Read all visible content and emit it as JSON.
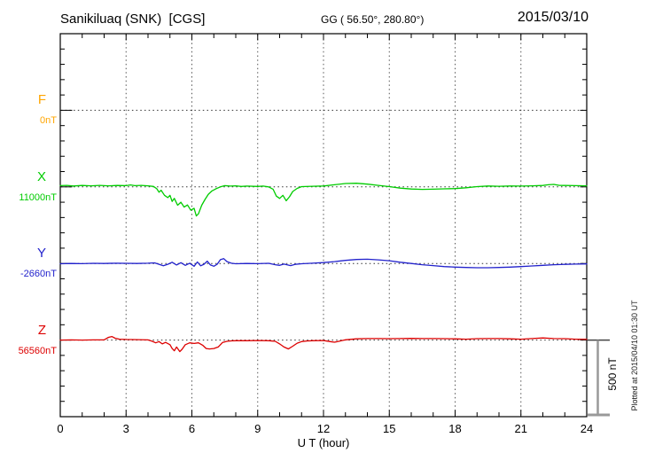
{
  "header": {
    "title": "Sanikiluaq (SNK)  [CGS]",
    "coordinates": "GG ( 56.50°, 280.80°)",
    "date": "2015/03/10"
  },
  "plot": {
    "xlabel": "U T (hour)",
    "x_tick_labels": [
      "0",
      "3",
      "6",
      "9",
      "12",
      "15",
      "18",
      "21",
      "24"
    ],
    "scale_bar_label": "500 nT",
    "plotted_note": "Plotted at 2015/04/10 01:30 UT"
  },
  "channels": [
    {
      "id": "F",
      "label": "F",
      "value": "0nT",
      "color": "#FFA500"
    },
    {
      "id": "X",
      "label": "X",
      "value": "11000nT",
      "color": "#00CC00"
    },
    {
      "id": "Y",
      "label": "Y",
      "value": "-2660nT",
      "color": "#2222CC"
    },
    {
      "id": "Z",
      "label": "Z",
      "value": "56560nT",
      "color": "#DD0000"
    }
  ],
  "chart_data": {
    "type": "line",
    "title": "Sanikiluaq (SNK) [CGS] magnetogram 2015/03/10",
    "xlabel": "U T (hour)",
    "x_range": [
      0,
      24
    ],
    "x_major_tick_step_hours": 3,
    "x_minor_tick_step_hours": 1,
    "y_minor_division_nT": 100,
    "y_baseline_spacing_nT": 500,
    "scale_bar_nT": 500,
    "grid": "dotted vertical lines every 3 hours, dotted horizontal line at each channel baseline",
    "baseline_values": {
      "F": "0nT",
      "X": "11000nT",
      "Y": "-2660nT",
      "Z": "56560nT"
    },
    "series": [
      {
        "name": "F",
        "points_hour_deviation_nT": []
      },
      {
        "name": "X",
        "points_hour_deviation_nT": [
          [
            0,
            8
          ],
          [
            0.3,
            10
          ],
          [
            0.6,
            6
          ],
          [
            1,
            9
          ],
          [
            1.4,
            7
          ],
          [
            1.8,
            10
          ],
          [
            2.2,
            7
          ],
          [
            2.6,
            9
          ],
          [
            3,
            8
          ],
          [
            3.2,
            13
          ],
          [
            3.4,
            8
          ],
          [
            3.7,
            10
          ],
          [
            4,
            7
          ],
          [
            4.25,
            3
          ],
          [
            4.4,
            -12
          ],
          [
            4.5,
            -35
          ],
          [
            4.6,
            -22
          ],
          [
            4.75,
            -55
          ],
          [
            4.9,
            -70
          ],
          [
            5,
            -55
          ],
          [
            5.1,
            -95
          ],
          [
            5.2,
            -75
          ],
          [
            5.35,
            -120
          ],
          [
            5.5,
            -100
          ],
          [
            5.65,
            -132
          ],
          [
            5.8,
            -118
          ],
          [
            5.95,
            -152
          ],
          [
            6.1,
            -140
          ],
          [
            6.2,
            -190
          ],
          [
            6.3,
            -176
          ],
          [
            6.45,
            -120
          ],
          [
            6.6,
            -82
          ],
          [
            6.75,
            -48
          ],
          [
            6.9,
            -28
          ],
          [
            7.1,
            -12
          ],
          [
            7.3,
            0
          ],
          [
            7.5,
            8
          ],
          [
            7.75,
            5
          ],
          [
            8,
            7
          ],
          [
            8.25,
            3
          ],
          [
            8.5,
            5
          ],
          [
            9,
            3
          ],
          [
            9.25,
            5
          ],
          [
            9.5,
            0
          ],
          [
            9.7,
            -15
          ],
          [
            9.85,
            -60
          ],
          [
            10,
            -75
          ],
          [
            10.15,
            -55
          ],
          [
            10.3,
            -90
          ],
          [
            10.45,
            -65
          ],
          [
            10.6,
            -30
          ],
          [
            10.8,
            -10
          ],
          [
            11,
            2
          ],
          [
            11.5,
            4
          ],
          [
            12,
            6
          ],
          [
            12.5,
            14
          ],
          [
            13,
            22
          ],
          [
            13.5,
            24
          ],
          [
            14,
            18
          ],
          [
            14.5,
            10
          ],
          [
            15,
            2
          ],
          [
            15.5,
            -8
          ],
          [
            16,
            -14
          ],
          [
            16.5,
            -16
          ],
          [
            17,
            -15
          ],
          [
            17.5,
            -13
          ],
          [
            18,
            -11
          ],
          [
            18.5,
            -6
          ],
          [
            19,
            2
          ],
          [
            19.5,
            6
          ],
          [
            20,
            4
          ],
          [
            20.5,
            6
          ],
          [
            21,
            5
          ],
          [
            21.5,
            7
          ],
          [
            22,
            9
          ],
          [
            22.25,
            14
          ],
          [
            22.5,
            16
          ],
          [
            22.75,
            10
          ],
          [
            23,
            9
          ],
          [
            23.5,
            8
          ],
          [
            24,
            7
          ]
        ]
      },
      {
        "name": "Y",
        "points_hour_deviation_nT": [
          [
            0,
            -2
          ],
          [
            0.5,
            0
          ],
          [
            1,
            -1
          ],
          [
            1.5,
            1
          ],
          [
            2,
            0
          ],
          [
            2.5,
            2
          ],
          [
            3,
            1
          ],
          [
            3.5,
            0
          ],
          [
            4,
            2
          ],
          [
            4.3,
            4
          ],
          [
            4.5,
            -5
          ],
          [
            4.7,
            -15
          ],
          [
            4.9,
            -5
          ],
          [
            5.1,
            8
          ],
          [
            5.3,
            -10
          ],
          [
            5.5,
            5
          ],
          [
            5.7,
            -12
          ],
          [
            5.9,
            2
          ],
          [
            6.1,
            -18
          ],
          [
            6.25,
            10
          ],
          [
            6.4,
            -15
          ],
          [
            6.55,
            -5
          ],
          [
            6.7,
            15
          ],
          [
            6.85,
            -10
          ],
          [
            7,
            -18
          ],
          [
            7.15,
            -5
          ],
          [
            7.3,
            25
          ],
          [
            7.45,
            32
          ],
          [
            7.6,
            12
          ],
          [
            7.8,
            2
          ],
          [
            8,
            -2
          ],
          [
            8.5,
            0
          ],
          [
            9,
            -1
          ],
          [
            9.5,
            1
          ],
          [
            9.8,
            -8
          ],
          [
            10,
            -12
          ],
          [
            10.2,
            -4
          ],
          [
            10.5,
            -14
          ],
          [
            10.7,
            -6
          ],
          [
            11,
            -2
          ],
          [
            11.5,
            2
          ],
          [
            12,
            6
          ],
          [
            12.5,
            12
          ],
          [
            13,
            20
          ],
          [
            13.5,
            26
          ],
          [
            14,
            28
          ],
          [
            14.5,
            24
          ],
          [
            15,
            18
          ],
          [
            15.5,
            8
          ],
          [
            16,
            0
          ],
          [
            16.5,
            -8
          ],
          [
            17,
            -14
          ],
          [
            17.5,
            -20
          ],
          [
            18,
            -24
          ],
          [
            18.5,
            -26
          ],
          [
            19,
            -28
          ],
          [
            19.5,
            -28
          ],
          [
            20,
            -26
          ],
          [
            20.5,
            -24
          ],
          [
            21,
            -20
          ],
          [
            21.5,
            -16
          ],
          [
            22,
            -12
          ],
          [
            22.5,
            -8
          ],
          [
            23,
            -6
          ],
          [
            23.5,
            -4
          ],
          [
            24,
            -3
          ]
        ]
      },
      {
        "name": "Z",
        "points_hour_deviation_nT": [
          [
            0,
            0
          ],
          [
            0.5,
            1
          ],
          [
            1,
            0
          ],
          [
            1.5,
            1
          ],
          [
            2,
            2
          ],
          [
            2.2,
            18
          ],
          [
            2.35,
            23
          ],
          [
            2.5,
            12
          ],
          [
            2.7,
            6
          ],
          [
            3,
            4
          ],
          [
            3.5,
            3
          ],
          [
            4,
            1
          ],
          [
            4.2,
            -8
          ],
          [
            4.35,
            -18
          ],
          [
            4.5,
            -10
          ],
          [
            4.65,
            -25
          ],
          [
            4.8,
            -15
          ],
          [
            5,
            -30
          ],
          [
            5.1,
            -55
          ],
          [
            5.2,
            -70
          ],
          [
            5.3,
            -45
          ],
          [
            5.45,
            -75
          ],
          [
            5.55,
            -60
          ],
          [
            5.7,
            -30
          ],
          [
            5.9,
            -18
          ],
          [
            6.1,
            -22
          ],
          [
            6.3,
            -18
          ],
          [
            6.5,
            -35
          ],
          [
            6.65,
            -55
          ],
          [
            6.8,
            -58
          ],
          [
            7,
            -55
          ],
          [
            7.2,
            -45
          ],
          [
            7.4,
            -15
          ],
          [
            7.6,
            -8
          ],
          [
            7.8,
            -5
          ],
          [
            8,
            -4
          ],
          [
            8.5,
            -4
          ],
          [
            9,
            -3
          ],
          [
            9.5,
            -4
          ],
          [
            9.8,
            -8
          ],
          [
            10,
            -25
          ],
          [
            10.2,
            -45
          ],
          [
            10.4,
            -58
          ],
          [
            10.6,
            -40
          ],
          [
            10.8,
            -20
          ],
          [
            11,
            -10
          ],
          [
            11.25,
            -6
          ],
          [
            11.5,
            -4
          ],
          [
            12,
            -3
          ],
          [
            12.3,
            -10
          ],
          [
            12.5,
            -14
          ],
          [
            12.7,
            -8
          ],
          [
            13,
            2
          ],
          [
            13.5,
            8
          ],
          [
            14,
            10
          ],
          [
            14.5,
            10
          ],
          [
            15,
            9
          ],
          [
            15.5,
            10
          ],
          [
            16,
            11
          ],
          [
            16.5,
            10
          ],
          [
            17,
            10
          ],
          [
            17.5,
            9
          ],
          [
            18,
            8
          ],
          [
            18.5,
            6
          ],
          [
            19,
            9
          ],
          [
            19.5,
            10
          ],
          [
            20,
            10
          ],
          [
            20.5,
            8
          ],
          [
            21,
            6
          ],
          [
            21.5,
            10
          ],
          [
            22,
            14
          ],
          [
            22.5,
            10
          ],
          [
            23,
            9
          ],
          [
            23.5,
            6
          ],
          [
            24,
            5
          ]
        ]
      }
    ]
  }
}
